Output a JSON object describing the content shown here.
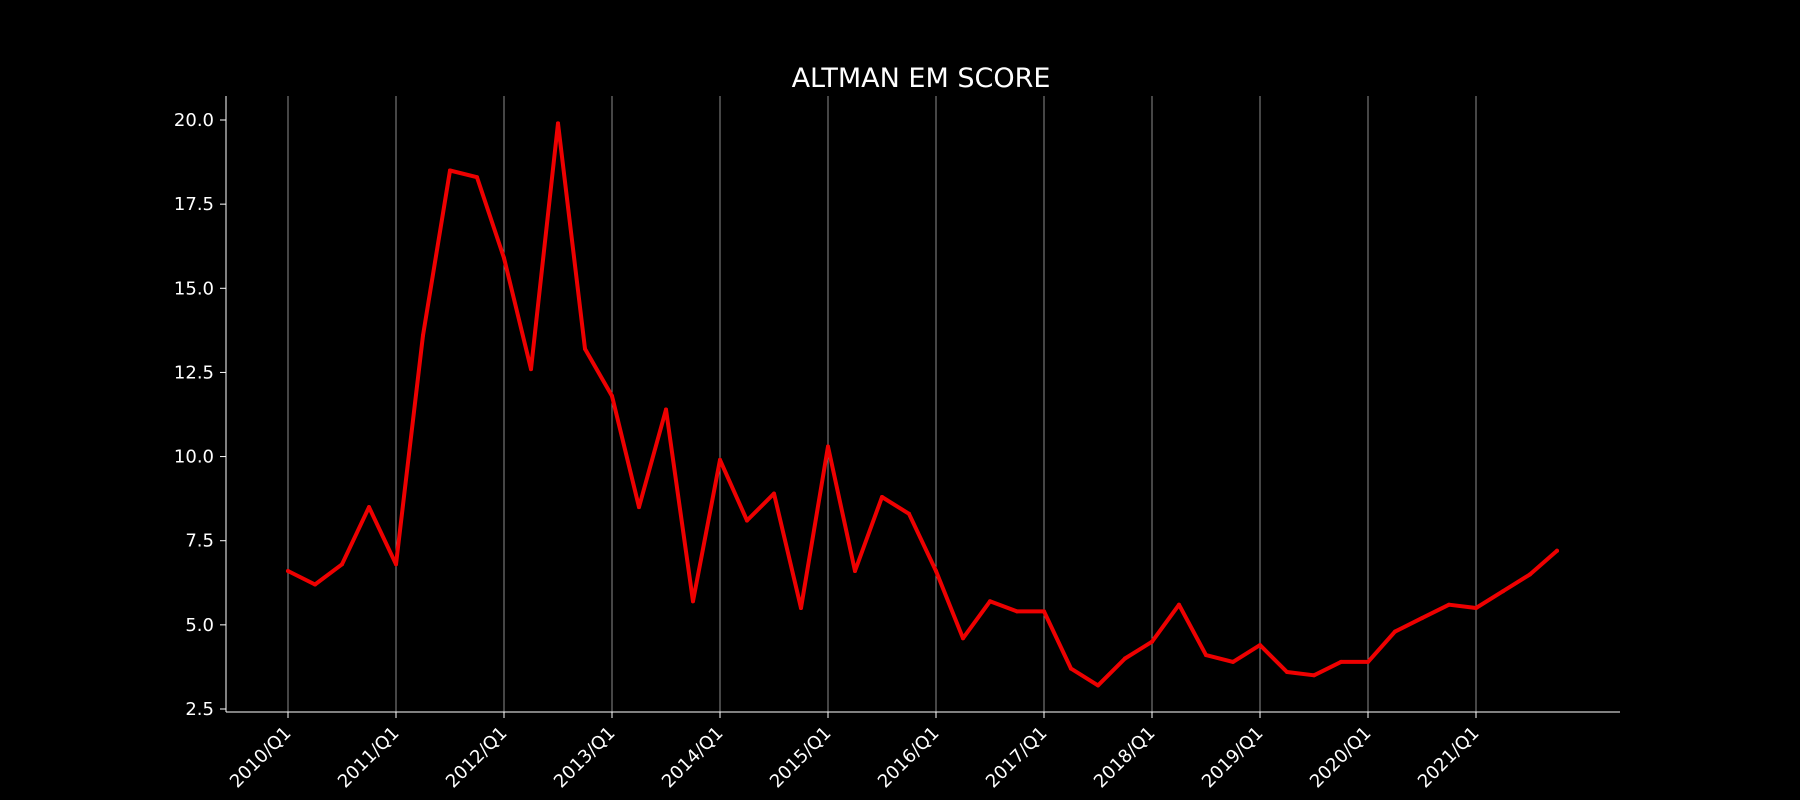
{
  "chart_data": {
    "type": "line",
    "title": "ALTMAN EM SCORE",
    "xlabel": "",
    "ylabel": "",
    "ylim": [
      2.5,
      20.0
    ],
    "yticks": [
      "2.5",
      "5.0",
      "7.5",
      "10.0",
      "12.5",
      "15.0",
      "17.5",
      "20.0"
    ],
    "xticks": [
      "2010/Q1",
      "2011/Q1",
      "2012/Q1",
      "2013/Q1",
      "2014/Q1",
      "2015/Q1",
      "2016/Q1",
      "2017/Q1",
      "2018/Q1",
      "2019/Q1",
      "2020/Q1",
      "2021/Q1"
    ],
    "grid": "vertical",
    "x": [
      "2010/Q1",
      "2010/Q2",
      "2010/Q3",
      "2010/Q4",
      "2011/Q1",
      "2011/Q2",
      "2011/Q3",
      "2011/Q4",
      "2012/Q1",
      "2012/Q2",
      "2012/Q3",
      "2012/Q4",
      "2013/Q1",
      "2013/Q2",
      "2013/Q3",
      "2013/Q4",
      "2014/Q1",
      "2014/Q2",
      "2014/Q3",
      "2014/Q4",
      "2015/Q1",
      "2015/Q2",
      "2015/Q3",
      "2015/Q4",
      "2016/Q1",
      "2016/Q2",
      "2016/Q3",
      "2016/Q4",
      "2017/Q1",
      "2017/Q2",
      "2017/Q3",
      "2017/Q4",
      "2018/Q1",
      "2018/Q2",
      "2018/Q3",
      "2018/Q4",
      "2019/Q1",
      "2019/Q2",
      "2019/Q3",
      "2019/Q4",
      "2020/Q1",
      "2020/Q2",
      "2020/Q3",
      "2020/Q4",
      "2021/Q1",
      "2021/Q2",
      "2021/Q3",
      "2021/Q4"
    ],
    "series": [
      {
        "color": "#ee0000",
        "values": [
          6.6,
          6.2,
          6.8,
          8.5,
          6.8,
          13.6,
          18.5,
          18.3,
          15.9,
          12.6,
          19.9,
          13.2,
          11.8,
          8.5,
          11.4,
          5.7,
          9.9,
          8.1,
          8.9,
          5.5,
          10.3,
          6.6,
          8.8,
          8.3,
          6.6,
          4.6,
          5.7,
          5.4,
          5.4,
          3.7,
          3.2,
          4.0,
          4.5,
          5.6,
          4.1,
          3.9,
          4.4,
          3.6,
          3.5,
          3.9,
          3.9,
          4.8,
          5.2,
          5.6,
          5.5,
          6.0,
          6.5,
          7.2
        ]
      }
    ]
  }
}
